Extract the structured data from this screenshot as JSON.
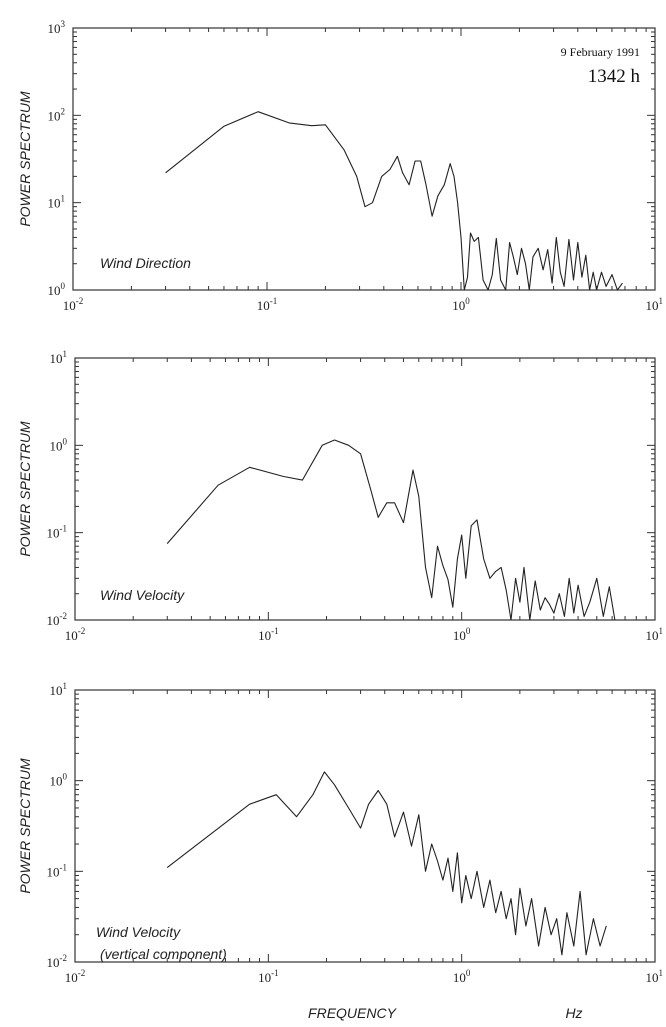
{
  "header": {
    "date": "9 February 1991",
    "time": "1342 h"
  },
  "xaxis": {
    "label": "FREQUENCY",
    "unit": "Hz"
  },
  "chart_data": [
    {
      "type": "line",
      "title": "",
      "annotation": "Wind Direction",
      "ylabel": "POWER SPECTRUM",
      "xlabel": "",
      "xscale": "log",
      "yscale": "log",
      "xlim": [
        0.01,
        10
      ],
      "ylim": [
        1,
        1000
      ],
      "x_ticks": [
        "10^-2",
        "10^-1",
        "10^0",
        "10^1"
      ],
      "y_ticks": [
        "10^0",
        "10^1",
        "10^2",
        "10^3"
      ],
      "grid": false,
      "series": [
        {
          "x": [
            0.03,
            0.06,
            0.09,
            0.13,
            0.17,
            0.2,
            0.25,
            0.29,
            0.32,
            0.35,
            0.39,
            0.43,
            0.47,
            0.5,
            0.54,
            0.58,
            0.62,
            0.66,
            0.71,
            0.76,
            0.82,
            0.88,
            0.92,
            0.96,
            1.0,
            1.04,
            1.08,
            1.12,
            1.17,
            1.23,
            1.3,
            1.38,
            1.45,
            1.52,
            1.6,
            1.7,
            1.78,
            1.86,
            1.95,
            2.05,
            2.15,
            2.25,
            2.35,
            2.5,
            2.65,
            2.8,
            2.95,
            3.1,
            3.25,
            3.4,
            3.6,
            3.8,
            4.0,
            4.2,
            4.4,
            4.6,
            4.8,
            5.0,
            5.3,
            5.6,
            6.0,
            6.4,
            6.8
          ],
          "y": [
            22,
            75,
            110,
            82,
            76,
            78,
            40,
            20,
            9,
            10,
            20,
            24,
            34,
            22,
            16,
            30,
            30,
            16,
            7,
            12,
            16,
            28,
            20,
            10,
            4,
            1,
            1.4,
            4.5,
            3.6,
            4,
            1.3,
            1,
            1.5,
            3.9,
            1.3,
            1,
            3.5,
            2.4,
            1.5,
            3,
            2,
            1,
            2.4,
            3,
            1.7,
            2.9,
            1.2,
            4,
            1.6,
            1.1,
            3.8,
            1.3,
            3.5,
            1.4,
            2.5,
            1,
            1.6,
            1,
            1.6,
            1.1,
            1.5,
            1,
            1.2
          ]
        }
      ]
    },
    {
      "type": "line",
      "title": "",
      "annotation": "Wind Velocity",
      "ylabel": "POWER SPECTRUM",
      "xlabel": "",
      "xscale": "log",
      "yscale": "log",
      "xlim": [
        0.01,
        10
      ],
      "ylim": [
        0.01,
        10
      ],
      "x_ticks": [
        "10^-2",
        "10^-1",
        "10^0",
        "10^1"
      ],
      "y_ticks": [
        "10^-2",
        "10^-1",
        "10^0",
        "10^1"
      ],
      "grid": false,
      "series": [
        {
          "x": [
            0.03,
            0.055,
            0.08,
            0.12,
            0.15,
            0.19,
            0.22,
            0.26,
            0.3,
            0.34,
            0.37,
            0.41,
            0.45,
            0.5,
            0.56,
            0.6,
            0.65,
            0.7,
            0.75,
            0.8,
            0.85,
            0.9,
            0.95,
            1.0,
            1.05,
            1.12,
            1.2,
            1.3,
            1.4,
            1.5,
            1.6,
            1.7,
            1.8,
            1.9,
            2.0,
            2.1,
            2.25,
            2.4,
            2.55,
            2.7,
            2.85,
            3.0,
            3.2,
            3.4,
            3.6,
            3.8,
            4.0,
            4.3,
            4.6,
            5.0,
            5.4,
            5.8,
            6.2
          ],
          "y": [
            0.075,
            0.35,
            0.56,
            0.44,
            0.4,
            1.0,
            1.15,
            1.0,
            0.8,
            0.3,
            0.15,
            0.22,
            0.22,
            0.13,
            0.52,
            0.26,
            0.04,
            0.018,
            0.07,
            0.042,
            0.029,
            0.014,
            0.05,
            0.094,
            0.03,
            0.12,
            0.14,
            0.05,
            0.03,
            0.036,
            0.04,
            0.022,
            0.01,
            0.03,
            0.016,
            0.04,
            0.01,
            0.028,
            0.013,
            0.018,
            0.015,
            0.012,
            0.02,
            0.011,
            0.03,
            0.012,
            0.025,
            0.011,
            0.016,
            0.03,
            0.011,
            0.024,
            0.01
          ]
        }
      ]
    },
    {
      "type": "line",
      "title": "",
      "annotation": "Wind Velocity (vertical component)",
      "ylabel": "POWER SPECTRUM",
      "xlabel": "FREQUENCY",
      "xscale": "log",
      "yscale": "log",
      "xlim": [
        0.01,
        10
      ],
      "ylim": [
        0.01,
        10
      ],
      "x_ticks": [
        "10^-2",
        "10^-1",
        "10^0",
        "10^1"
      ],
      "y_ticks": [
        "10^-2",
        "10^-1",
        "10^0",
        "10^1"
      ],
      "grid": false,
      "series": [
        {
          "x": [
            0.03,
            0.08,
            0.11,
            0.14,
            0.17,
            0.195,
            0.22,
            0.26,
            0.3,
            0.33,
            0.37,
            0.41,
            0.45,
            0.5,
            0.55,
            0.6,
            0.65,
            0.7,
            0.75,
            0.8,
            0.85,
            0.9,
            0.95,
            1.0,
            1.05,
            1.12,
            1.2,
            1.3,
            1.4,
            1.5,
            1.6,
            1.7,
            1.8,
            1.9,
            2.0,
            2.15,
            2.3,
            2.5,
            2.7,
            2.9,
            3.1,
            3.3,
            3.5,
            3.8,
            4.1,
            4.4,
            4.8,
            5.2,
            5.6
          ],
          "y": [
            0.11,
            0.55,
            0.7,
            0.4,
            0.7,
            1.25,
            0.9,
            0.5,
            0.3,
            0.55,
            0.78,
            0.55,
            0.24,
            0.45,
            0.19,
            0.42,
            0.1,
            0.2,
            0.13,
            0.08,
            0.14,
            0.06,
            0.16,
            0.045,
            0.09,
            0.05,
            0.1,
            0.04,
            0.08,
            0.035,
            0.06,
            0.03,
            0.05,
            0.02,
            0.065,
            0.025,
            0.05,
            0.015,
            0.04,
            0.02,
            0.03,
            0.012,
            0.035,
            0.015,
            0.06,
            0.012,
            0.03,
            0.015,
            0.025
          ]
        }
      ]
    }
  ]
}
